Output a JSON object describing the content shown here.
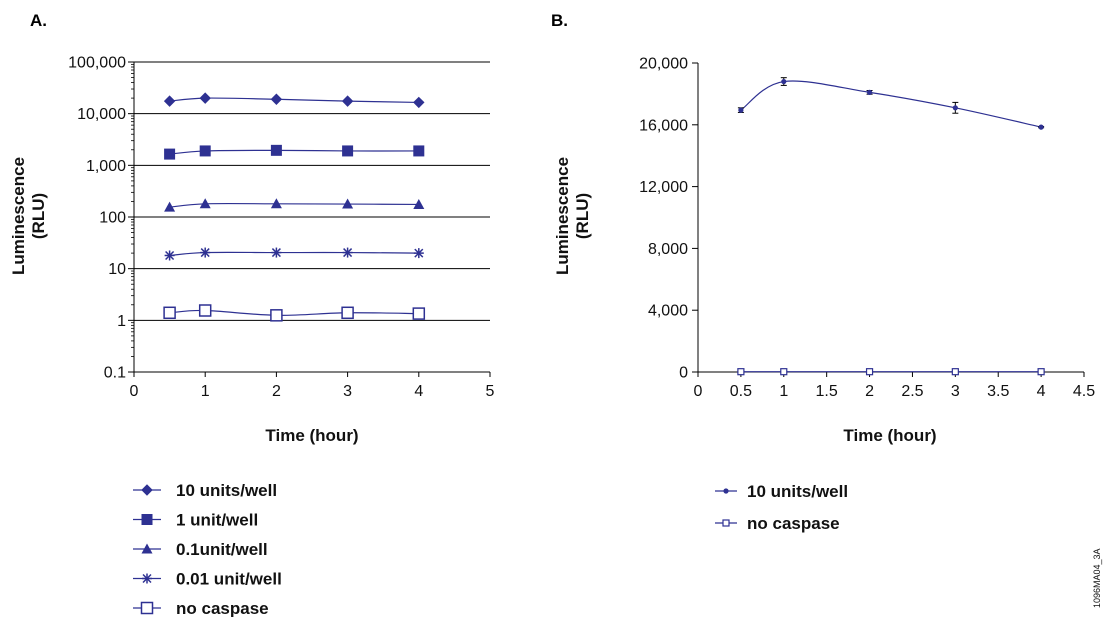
{
  "figure_code": "1096MA04_3A",
  "colors": {
    "series": "#2e3192",
    "axis": "#000000"
  },
  "chart_data": [
    {
      "panel_label": "A.",
      "type": "line",
      "scale_y": "log",
      "xlabel": "Time (hour)",
      "ylabel_line1": "Luminescence",
      "ylabel_line2": "(RLU)",
      "xlim": [
        0,
        5
      ],
      "ylim": [
        0.1,
        100000
      ],
      "x_ticks": [
        "0",
        "1",
        "2",
        "3",
        "4",
        "5"
      ],
      "y_ticks": [
        "0.1",
        "1",
        "10",
        "100",
        "1,000",
        "10,000",
        "100,000"
      ],
      "grid": "horizontal at decades",
      "x": [
        0.5,
        1,
        2,
        3,
        4
      ],
      "series": [
        {
          "name": "10 units/well",
          "marker": "diamond",
          "values": [
            17500,
            20000,
            19000,
            17500,
            16500
          ]
        },
        {
          "name": "1 unit/well",
          "marker": "square-filled",
          "values": [
            1650,
            1900,
            1950,
            1900,
            1900
          ]
        },
        {
          "name": "0.1unit/well",
          "marker": "triangle",
          "values": [
            155,
            180,
            180,
            178,
            175
          ]
        },
        {
          "name": "0.01 unit/well",
          "marker": "star",
          "values": [
            18,
            20.5,
            20.5,
            20.5,
            20
          ]
        },
        {
          "name": "no caspase",
          "marker": "square-open",
          "values": [
            1.4,
            1.55,
            1.25,
            1.4,
            1.35
          ]
        }
      ]
    },
    {
      "panel_label": "B.",
      "type": "line",
      "scale_y": "linear",
      "xlabel": "Time (hour)",
      "ylabel_line1": "Luminescence",
      "ylabel_line2": "(RLU)",
      "xlim": [
        0,
        4.5
      ],
      "ylim": [
        0,
        20000
      ],
      "x_ticks": [
        "0",
        "0.5",
        "1",
        "1.5",
        "2",
        "2.5",
        "3",
        "3.5",
        "4",
        "4.5"
      ],
      "y_ticks": [
        "0",
        "4,000",
        "8,000",
        "12,000",
        "16,000",
        "20,000"
      ],
      "grid": "none",
      "x": [
        0.5,
        1,
        2,
        3,
        4
      ],
      "series": [
        {
          "name": "10 units/well",
          "marker": "dot",
          "values": [
            16950,
            18800,
            18100,
            17100,
            15850
          ],
          "errors": [
            150,
            250,
            120,
            350,
            40
          ]
        },
        {
          "name": "no caspase",
          "marker": "square-open-small",
          "values": [
            20,
            20,
            20,
            20,
            20
          ]
        }
      ]
    }
  ]
}
